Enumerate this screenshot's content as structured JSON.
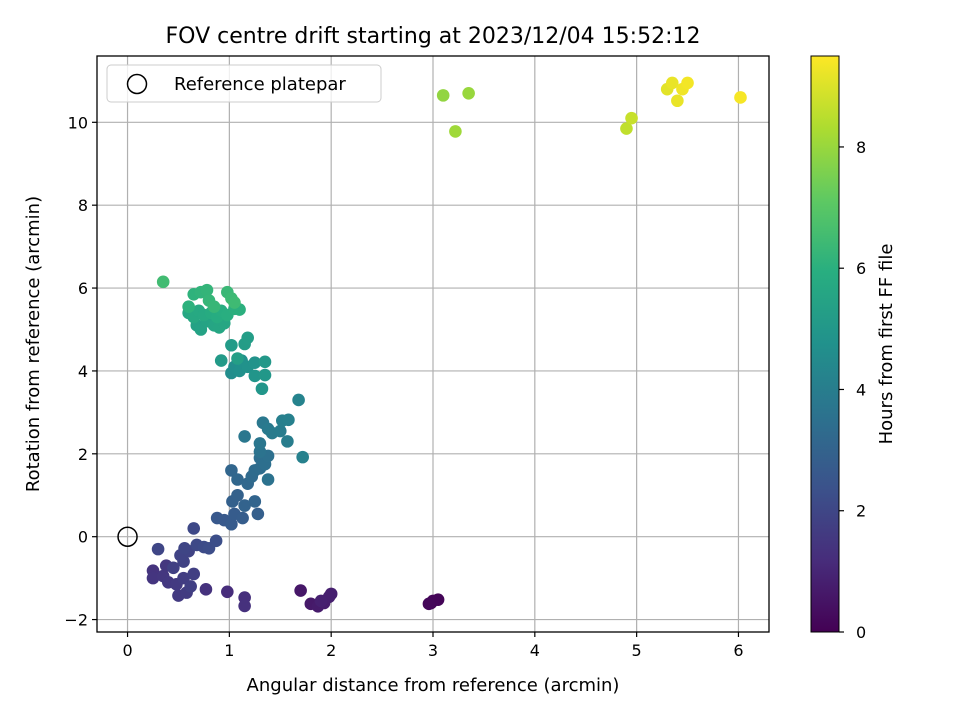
{
  "chart_data": {
    "type": "scatter",
    "title": "FOV centre drift starting at 2023/12/04 15:52:12",
    "xlabel": "Angular distance from reference (arcmin)",
    "ylabel": "Rotation from reference (arcmin)",
    "xlim": [
      -0.3,
      6.3
    ],
    "ylim": [
      -2.3,
      11.6
    ],
    "xticks": [
      0,
      1,
      2,
      3,
      4,
      5,
      6
    ],
    "yticks": [
      -2,
      0,
      2,
      4,
      6,
      8,
      10
    ],
    "grid": true,
    "legend": {
      "placement": "top-left",
      "entries": [
        "Reference platepar"
      ]
    },
    "reference_point": {
      "x": 0,
      "y": 0
    },
    "colormap": "viridis",
    "colorbar": {
      "label": "Hours from first FF file",
      "range": [
        0,
        9.5
      ],
      "ticks": [
        0,
        2,
        4,
        6,
        8
      ]
    },
    "points": [
      {
        "x": 2.98,
        "y": -1.6,
        "c": 0.05
      },
      {
        "x": 3.05,
        "y": -1.52,
        "c": 0.1
      },
      {
        "x": 3.0,
        "y": -1.55,
        "c": 0.12
      },
      {
        "x": 2.96,
        "y": -1.62,
        "c": 0.15
      },
      {
        "x": 1.7,
        "y": -1.3,
        "c": 0.6
      },
      {
        "x": 1.8,
        "y": -1.62,
        "c": 0.65
      },
      {
        "x": 1.87,
        "y": -1.68,
        "c": 0.7
      },
      {
        "x": 1.93,
        "y": -1.6,
        "c": 0.75
      },
      {
        "x": 1.98,
        "y": -1.45,
        "c": 0.8
      },
      {
        "x": 2.0,
        "y": -1.38,
        "c": 0.82
      },
      {
        "x": 1.9,
        "y": -1.55,
        "c": 0.85
      },
      {
        "x": 0.98,
        "y": -1.33,
        "c": 1.2
      },
      {
        "x": 1.15,
        "y": -1.47,
        "c": 1.25
      },
      {
        "x": 1.15,
        "y": -1.67,
        "c": 1.3
      },
      {
        "x": 0.77,
        "y": -1.27,
        "c": 1.35
      },
      {
        "x": 0.25,
        "y": -0.82,
        "c": 1.4
      },
      {
        "x": 0.25,
        "y": -1.0,
        "c": 1.45
      },
      {
        "x": 0.35,
        "y": -0.95,
        "c": 1.5
      },
      {
        "x": 0.38,
        "y": -0.7,
        "c": 1.5
      },
      {
        "x": 0.4,
        "y": -1.1,
        "c": 1.55
      },
      {
        "x": 0.48,
        "y": -1.15,
        "c": 1.6
      },
      {
        "x": 0.5,
        "y": -1.42,
        "c": 1.6
      },
      {
        "x": 0.58,
        "y": -1.35,
        "c": 1.65
      },
      {
        "x": 0.55,
        "y": -1.0,
        "c": 1.7
      },
      {
        "x": 0.62,
        "y": -1.2,
        "c": 1.75
      },
      {
        "x": 0.65,
        "y": -0.9,
        "c": 1.75
      },
      {
        "x": 0.45,
        "y": -0.75,
        "c": 1.8
      },
      {
        "x": 0.55,
        "y": -0.6,
        "c": 1.85
      },
      {
        "x": 0.52,
        "y": -0.45,
        "c": 1.9
      },
      {
        "x": 0.6,
        "y": -0.35,
        "c": 1.9
      },
      {
        "x": 0.56,
        "y": -0.28,
        "c": 1.95
      },
      {
        "x": 0.3,
        "y": -0.3,
        "c": 2.0
      },
      {
        "x": 0.65,
        "y": 0.2,
        "c": 2.05
      },
      {
        "x": 0.68,
        "y": -0.2,
        "c": 2.1
      },
      {
        "x": 0.75,
        "y": -0.25,
        "c": 2.15
      },
      {
        "x": 0.8,
        "y": -0.28,
        "c": 2.2
      },
      {
        "x": 0.87,
        "y": -0.1,
        "c": 2.25
      },
      {
        "x": 0.88,
        "y": 0.45,
        "c": 2.6
      },
      {
        "x": 0.95,
        "y": 0.4,
        "c": 2.65
      },
      {
        "x": 1.02,
        "y": 0.3,
        "c": 2.7
      },
      {
        "x": 1.05,
        "y": 0.55,
        "c": 2.75
      },
      {
        "x": 1.13,
        "y": 0.45,
        "c": 2.8
      },
      {
        "x": 1.28,
        "y": 0.55,
        "c": 2.85
      },
      {
        "x": 1.03,
        "y": 0.85,
        "c": 2.9
      },
      {
        "x": 1.08,
        "y": 1.0,
        "c": 2.95
      },
      {
        "x": 1.15,
        "y": 0.75,
        "c": 3.0
      },
      {
        "x": 1.25,
        "y": 0.85,
        "c": 3.05
      },
      {
        "x": 1.02,
        "y": 1.6,
        "c": 3.1
      },
      {
        "x": 1.08,
        "y": 1.38,
        "c": 3.15
      },
      {
        "x": 1.18,
        "y": 1.28,
        "c": 3.2
      },
      {
        "x": 1.22,
        "y": 1.45,
        "c": 3.25
      },
      {
        "x": 1.25,
        "y": 1.6,
        "c": 3.3
      },
      {
        "x": 1.3,
        "y": 1.65,
        "c": 3.35
      },
      {
        "x": 1.3,
        "y": 1.9,
        "c": 3.4
      },
      {
        "x": 1.35,
        "y": 1.75,
        "c": 3.45
      },
      {
        "x": 1.38,
        "y": 1.95,
        "c": 3.5
      },
      {
        "x": 1.38,
        "y": 1.38,
        "c": 3.55
      },
      {
        "x": 1.3,
        "y": 2.05,
        "c": 3.6
      },
      {
        "x": 1.3,
        "y": 2.25,
        "c": 3.7
      },
      {
        "x": 1.15,
        "y": 2.42,
        "c": 3.75
      },
      {
        "x": 1.33,
        "y": 2.75,
        "c": 3.8
      },
      {
        "x": 1.38,
        "y": 2.6,
        "c": 3.85
      },
      {
        "x": 1.42,
        "y": 2.5,
        "c": 3.9
      },
      {
        "x": 1.5,
        "y": 2.55,
        "c": 3.95
      },
      {
        "x": 1.57,
        "y": 2.3,
        "c": 4.0
      },
      {
        "x": 1.52,
        "y": 2.8,
        "c": 4.05
      },
      {
        "x": 1.58,
        "y": 2.82,
        "c": 4.1
      },
      {
        "x": 1.72,
        "y": 1.92,
        "c": 4.15
      },
      {
        "x": 1.68,
        "y": 3.3,
        "c": 4.2
      },
      {
        "x": 1.02,
        "y": 3.95,
        "c": 4.6
      },
      {
        "x": 1.05,
        "y": 4.1,
        "c": 4.65
      },
      {
        "x": 1.1,
        "y": 4.0,
        "c": 4.7
      },
      {
        "x": 1.12,
        "y": 4.25,
        "c": 4.75
      },
      {
        "x": 1.18,
        "y": 4.1,
        "c": 4.8
      },
      {
        "x": 1.25,
        "y": 4.2,
        "c": 4.85
      },
      {
        "x": 1.25,
        "y": 3.88,
        "c": 4.9
      },
      {
        "x": 1.32,
        "y": 3.57,
        "c": 4.95
      },
      {
        "x": 1.35,
        "y": 3.9,
        "c": 5.0
      },
      {
        "x": 1.35,
        "y": 4.22,
        "c": 5.05
      },
      {
        "x": 0.92,
        "y": 4.25,
        "c": 5.1
      },
      {
        "x": 1.02,
        "y": 4.62,
        "c": 5.15
      },
      {
        "x": 1.15,
        "y": 4.65,
        "c": 5.2
      },
      {
        "x": 1.18,
        "y": 4.8,
        "c": 5.25
      },
      {
        "x": 1.08,
        "y": 4.3,
        "c": 5.3
      },
      {
        "x": 0.68,
        "y": 5.1,
        "c": 5.4
      },
      {
        "x": 0.72,
        "y": 5.0,
        "c": 5.45
      },
      {
        "x": 0.78,
        "y": 5.2,
        "c": 5.5
      },
      {
        "x": 0.85,
        "y": 5.1,
        "c": 5.55
      },
      {
        "x": 0.9,
        "y": 5.05,
        "c": 5.6
      },
      {
        "x": 0.95,
        "y": 5.15,
        "c": 5.6
      },
      {
        "x": 0.6,
        "y": 5.4,
        "c": 5.65
      },
      {
        "x": 0.65,
        "y": 5.3,
        "c": 5.7
      },
      {
        "x": 0.7,
        "y": 5.45,
        "c": 5.75
      },
      {
        "x": 0.75,
        "y": 5.35,
        "c": 5.75
      },
      {
        "x": 0.82,
        "y": 5.4,
        "c": 5.8
      },
      {
        "x": 0.88,
        "y": 5.3,
        "c": 5.85
      },
      {
        "x": 0.92,
        "y": 5.45,
        "c": 5.9
      },
      {
        "x": 0.98,
        "y": 5.35,
        "c": 5.95
      },
      {
        "x": 1.05,
        "y": 5.5,
        "c": 6.0
      },
      {
        "x": 1.1,
        "y": 5.48,
        "c": 6.0
      },
      {
        "x": 0.6,
        "y": 5.55,
        "c": 6.05
      },
      {
        "x": 0.65,
        "y": 5.85,
        "c": 6.1
      },
      {
        "x": 0.72,
        "y": 5.9,
        "c": 6.15
      },
      {
        "x": 0.78,
        "y": 5.95,
        "c": 6.2
      },
      {
        "x": 0.8,
        "y": 5.7,
        "c": 6.25
      },
      {
        "x": 0.85,
        "y": 5.55,
        "c": 6.3
      },
      {
        "x": 0.98,
        "y": 5.9,
        "c": 6.35
      },
      {
        "x": 1.02,
        "y": 5.75,
        "c": 6.4
      },
      {
        "x": 1.05,
        "y": 5.65,
        "c": 6.45
      },
      {
        "x": 0.35,
        "y": 6.15,
        "c": 6.5
      },
      {
        "x": 3.1,
        "y": 10.65,
        "c": 7.9
      },
      {
        "x": 3.35,
        "y": 10.7,
        "c": 8.0
      },
      {
        "x": 3.22,
        "y": 9.78,
        "c": 8.1
      },
      {
        "x": 4.9,
        "y": 9.85,
        "c": 8.6
      },
      {
        "x": 4.95,
        "y": 10.1,
        "c": 8.7
      },
      {
        "x": 5.3,
        "y": 10.8,
        "c": 9.1
      },
      {
        "x": 5.35,
        "y": 10.95,
        "c": 9.2
      },
      {
        "x": 5.4,
        "y": 10.52,
        "c": 9.2
      },
      {
        "x": 5.45,
        "y": 10.8,
        "c": 9.3
      },
      {
        "x": 5.5,
        "y": 10.95,
        "c": 9.35
      },
      {
        "x": 6.02,
        "y": 10.6,
        "c": 9.4
      }
    ]
  }
}
